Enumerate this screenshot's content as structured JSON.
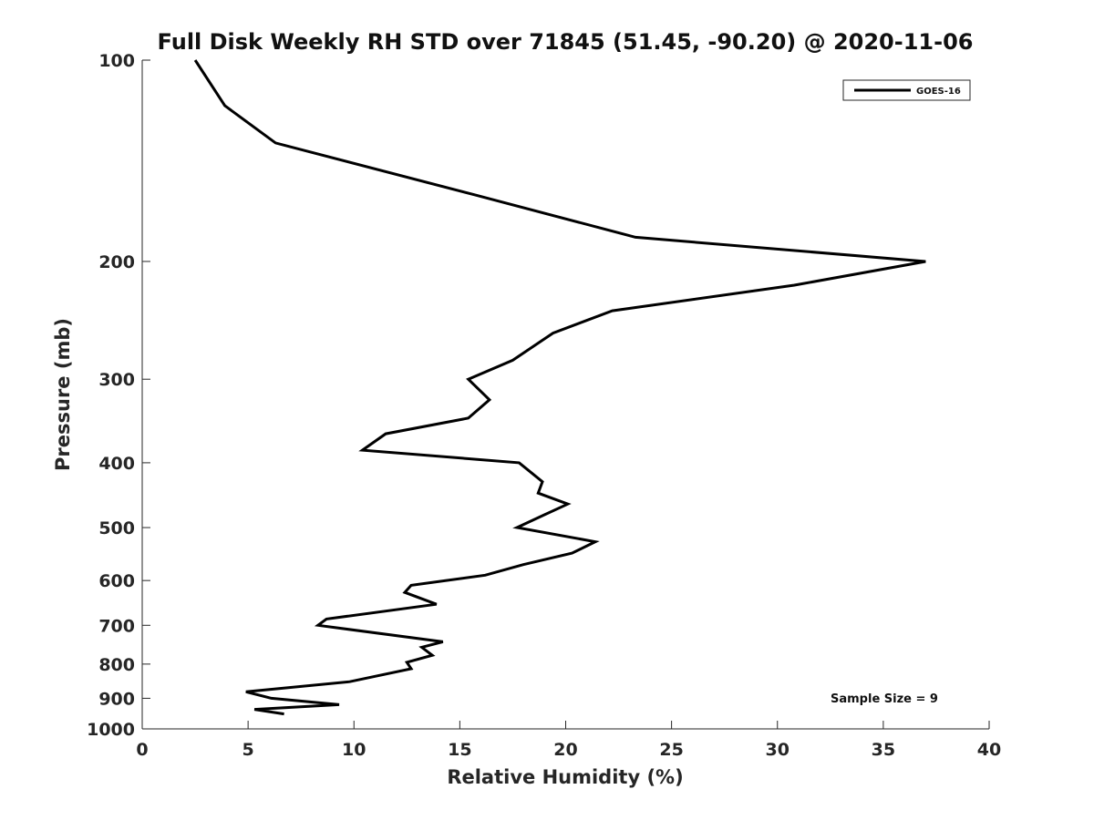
{
  "chart_data": {
    "type": "line",
    "title": "Full Disk Weekly RH STD over 71845 (51.45, -90.20) @ 2020-11-06",
    "xlabel": "Relative Humidity (%)",
    "ylabel": "Pressure (mb)",
    "xlim": [
      0,
      40
    ],
    "ylim": [
      100,
      1000
    ],
    "y_scale": "log",
    "y_reversed": true,
    "grid": false,
    "legend_position": "top-right",
    "x_ticks": [
      0,
      5,
      10,
      15,
      20,
      25,
      30,
      35,
      40
    ],
    "y_ticks": [
      100,
      200,
      300,
      400,
      500,
      600,
      700,
      800,
      900,
      1000
    ],
    "annotation": "Sample Size = 9",
    "series": [
      {
        "name": "GOES-16",
        "color": "#000000",
        "points": [
          [
            2.5,
            100
          ],
          [
            3.9,
            117
          ],
          [
            6.3,
            133
          ],
          [
            15.7,
            159
          ],
          [
            23.3,
            184
          ],
          [
            37.0,
            200
          ],
          [
            30.8,
            217
          ],
          [
            22.2,
            237
          ],
          [
            19.4,
            256
          ],
          [
            17.5,
            281
          ],
          [
            15.4,
            300
          ],
          [
            16.4,
            322
          ],
          [
            15.4,
            343
          ],
          [
            11.5,
            362
          ],
          [
            10.4,
            383
          ],
          [
            17.8,
            400
          ],
          [
            18.9,
            427
          ],
          [
            18.7,
            444
          ],
          [
            20.1,
            461
          ],
          [
            18.9,
            480
          ],
          [
            17.7,
            500
          ],
          [
            21.4,
            525
          ],
          [
            20.3,
            546
          ],
          [
            18.0,
            568
          ],
          [
            16.2,
            589
          ],
          [
            12.7,
            610
          ],
          [
            12.4,
            625
          ],
          [
            13.9,
            651
          ],
          [
            8.7,
            685
          ],
          [
            8.3,
            700
          ],
          [
            14.2,
            741
          ],
          [
            13.2,
            755
          ],
          [
            13.7,
            776
          ],
          [
            12.5,
            795
          ],
          [
            12.7,
            813
          ],
          [
            9.8,
            850
          ],
          [
            4.9,
            880
          ],
          [
            6.1,
            900
          ],
          [
            9.3,
            920
          ],
          [
            5.3,
            935
          ],
          [
            6.7,
            950
          ]
        ]
      }
    ]
  }
}
